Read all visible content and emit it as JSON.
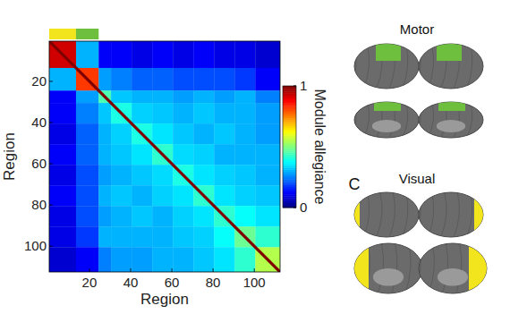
{
  "chart_data": {
    "type": "heatmap",
    "x_label": "Region",
    "y_label": "Region",
    "xlim": [
      0.5,
      112.5
    ],
    "ylim": [
      0.5,
      112.5
    ],
    "xticks": [
      20,
      40,
      60,
      80,
      100
    ],
    "yticks": [
      20,
      40,
      60,
      80,
      100
    ],
    "x_edges": [
      0.5,
      13.5,
      24.5,
      30.5,
      40.5,
      50.5,
      60.5,
      70.5,
      80.5,
      90.5,
      100.5,
      112.5
    ],
    "y_edges": [
      0.5,
      13.5,
      24.5,
      30.5,
      40.5,
      50.5,
      60.5,
      70.5,
      80.5,
      90.5,
      100.5,
      112.5
    ],
    "cells": [
      [
        0.92,
        0.3,
        0.12,
        0.12,
        0.1,
        0.12,
        0.1,
        0.12,
        0.1,
        0.1,
        0.08
      ],
      [
        0.3,
        0.82,
        0.28,
        0.25,
        0.22,
        0.22,
        0.2,
        0.2,
        0.2,
        0.18,
        0.12
      ],
      [
        0.12,
        0.28,
        0.45,
        0.32,
        0.3,
        0.3,
        0.28,
        0.3,
        0.28,
        0.3,
        0.25
      ],
      [
        0.12,
        0.25,
        0.32,
        0.4,
        0.33,
        0.32,
        0.3,
        0.32,
        0.3,
        0.3,
        0.28
      ],
      [
        0.1,
        0.22,
        0.3,
        0.33,
        0.4,
        0.35,
        0.32,
        0.3,
        0.32,
        0.3,
        0.28
      ],
      [
        0.12,
        0.22,
        0.3,
        0.32,
        0.35,
        0.42,
        0.34,
        0.33,
        0.3,
        0.3,
        0.3
      ],
      [
        0.1,
        0.2,
        0.28,
        0.3,
        0.32,
        0.34,
        0.4,
        0.35,
        0.33,
        0.32,
        0.3
      ],
      [
        0.12,
        0.2,
        0.3,
        0.32,
        0.3,
        0.33,
        0.35,
        0.42,
        0.35,
        0.33,
        0.32
      ],
      [
        0.1,
        0.2,
        0.28,
        0.3,
        0.32,
        0.3,
        0.33,
        0.35,
        0.42,
        0.38,
        0.35
      ],
      [
        0.1,
        0.18,
        0.3,
        0.3,
        0.3,
        0.3,
        0.32,
        0.33,
        0.38,
        0.48,
        0.42
      ],
      [
        0.08,
        0.12,
        0.25,
        0.28,
        0.28,
        0.3,
        0.3,
        0.32,
        0.35,
        0.42,
        0.55
      ]
    ],
    "diagonal": 1,
    "colorbar": {
      "label": "Module allegiance",
      "range": [
        0,
        1
      ],
      "ticks": [
        0,
        1
      ]
    },
    "modules": [
      {
        "name": "Visual",
        "color": "#f2e51d",
        "start": 0.5,
        "end": 13.5
      },
      {
        "name": "Motor",
        "color": "#6fbf3f",
        "start": 13.5,
        "end": 24.5
      }
    ]
  },
  "panel_label": "C"
}
